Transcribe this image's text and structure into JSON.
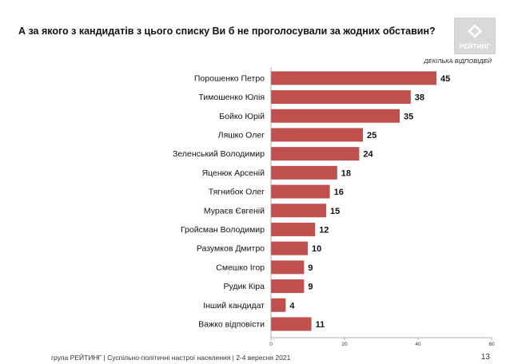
{
  "header": {
    "question": "А за якого з кандидатів з цього списку Ви б не проголосували за жодних обставин?",
    "logo_text": "РЕЙТИНГ",
    "note": "ДЕКІЛЬКА ВІДПОВІДЕЙ"
  },
  "colors": {
    "bar": "#c0504d",
    "logo_bg": "#d9d9d9"
  },
  "chart_data": {
    "type": "bar",
    "orientation": "horizontal",
    "title": "",
    "xlabel": "",
    "ylabel": "",
    "categories": [
      "Порошенко Петро",
      "Тимошенко Юлія",
      "Бойко Юрій",
      "Ляшко Олег",
      "Зеленський Володимир",
      "Яценюк  Арсеній",
      "Тягнибок Олег",
      "Мураєв Євгеній",
      "Гройсман Володимир",
      "Разумков Дмитро",
      "Смешко Ігор",
      "Рудик Кіра",
      "Інший кандидат",
      "Важко відповісти"
    ],
    "values": [
      45,
      38,
      35,
      25,
      24,
      18,
      16,
      15,
      12,
      10,
      9,
      9,
      4,
      11
    ],
    "xlim": [
      0,
      60
    ],
    "xticks": [
      "0",
      "20",
      "40",
      "60"
    ],
    "grid": false,
    "legend": "none"
  },
  "footer": {
    "source": "група РЕЙТИНГ | Суспільно-політичні настрої населення  | 2-4 вересня 2021",
    "page": "13"
  }
}
